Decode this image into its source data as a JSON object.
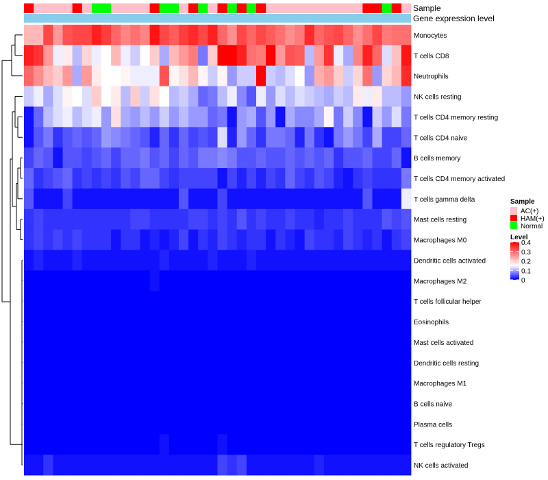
{
  "chart_data": {
    "type": "heatmap",
    "annotation_labels": {
      "sample": "Sample",
      "gene": "Gene expression level"
    },
    "rows": [
      "Monocytes",
      "T cells CD8",
      "Neutrophils",
      "NK cells resting",
      "T cells CD4 memory resting",
      "T cells CD4 naive",
      "B cells memory",
      "T cells CD4 memory activated",
      "T cells gamma delta",
      "Mast cells resting",
      "Macrophages M0",
      "Dendritic cells activated",
      "Macrophages M2",
      "T cells follicular helper",
      "Eosinophils",
      "Mast cells activated",
      "Dendritic cells resting",
      "Macrophages M1",
      "B cells naive",
      "Plasma cells",
      "T cells regulatory  Tregs",
      "NK cells activated"
    ],
    "samples": [
      "HAM(+)",
      "AC(+)",
      "AC(+)",
      "AC(+)",
      "AC(+)",
      "HAM(+)",
      "AC(+)",
      "Normal",
      "Normal",
      "AC(+)",
      "AC(+)",
      "AC(+)",
      "AC(+)",
      "HAM(+)",
      "Normal",
      "Normal",
      "AC(+)",
      "HAM(+)",
      "Normal",
      "AC(+)",
      "HAM(+)",
      "Normal",
      "HAM(+)",
      "Normal",
      "HAM(+)",
      "AC(+)",
      "AC(+)",
      "AC(+)",
      "AC(+)",
      "AC(+)",
      "AC(+)",
      "AC(+)",
      "AC(+)",
      "AC(+)",
      "AC(+)",
      "HAM(+)",
      "HAM(+)",
      "Normal",
      "HAM(+)",
      "AC(+)"
    ],
    "values": [
      [
        0.22,
        0.22,
        0.33,
        0.25,
        0.32,
        0.33,
        0.33,
        0.37,
        0.34,
        0.3,
        0.27,
        0.29,
        0.27,
        0.38,
        0.33,
        0.31,
        0.34,
        0.36,
        0.33,
        0.37,
        0.3,
        0.26,
        0.33,
        0.3,
        0.33,
        0.31,
        0.29,
        0.26,
        0.28,
        0.36,
        0.3,
        0.32,
        0.33,
        0.3,
        0.26,
        0.29,
        0.33,
        0.28,
        0.29,
        0.29
      ],
      [
        0.37,
        0.35,
        0.25,
        0.14,
        0.17,
        0.11,
        0.19,
        0.14,
        0.15,
        0.22,
        0.14,
        0.12,
        0.15,
        0.2,
        0.1,
        0.22,
        0.25,
        0.28,
        0.07,
        0.2,
        0.4,
        0.4,
        0.37,
        0.29,
        0.28,
        0.41,
        0.25,
        0.32,
        0.31,
        0.11,
        0.25,
        0.35,
        0.14,
        0.1,
        0.27,
        0.37,
        0.3,
        0.13,
        0.21,
        0.38
      ],
      [
        0.3,
        0.26,
        0.22,
        0.2,
        0.25,
        0.1,
        0.25,
        0.17,
        0.15,
        0.15,
        0.16,
        0.14,
        0.14,
        0.14,
        0.32,
        0.16,
        0.18,
        0.22,
        0.16,
        0.12,
        0.16,
        0.09,
        0.12,
        0.12,
        0.4,
        0.12,
        0.11,
        0.13,
        0.15,
        0.09,
        0.23,
        0.25,
        0.2,
        0.12,
        0.19,
        0.29,
        0.09,
        0.19,
        0.22,
        0.36
      ],
      [
        0.12,
        0.14,
        0.1,
        0.13,
        0.16,
        0.15,
        0.13,
        0.2,
        0.15,
        0.17,
        0.11,
        0.2,
        0.12,
        0.18,
        0.15,
        0.11,
        0.12,
        0.1,
        0.06,
        0.07,
        0.11,
        0.14,
        0.08,
        0.05,
        0.14,
        0.09,
        0.13,
        0.11,
        0.13,
        0.12,
        0.11,
        0.1,
        0.12,
        0.11,
        0.17,
        0.14,
        0.17,
        0.11,
        0.11,
        0.09
      ],
      [
        0.01,
        0.06,
        0.11,
        0.13,
        0.14,
        0.11,
        0.13,
        0.14,
        0.09,
        0.18,
        0.1,
        0.09,
        0.11,
        0.09,
        0.12,
        0.09,
        0.11,
        0.09,
        0.09,
        0.06,
        0.07,
        0.01,
        0.09,
        0.1,
        0.05,
        0.09,
        0.01,
        0.1,
        0.08,
        0.08,
        0.1,
        0.16,
        0.07,
        0.12,
        0.08,
        0.01,
        0.12,
        0.09,
        0.13,
        0.07
      ],
      [
        0.01,
        0.05,
        0.07,
        0.03,
        0.05,
        0.06,
        0.05,
        0.06,
        0.09,
        0.08,
        0.07,
        0.06,
        0.05,
        0.02,
        0.06,
        0.03,
        0.06,
        0.04,
        0.05,
        0.04,
        0.13,
        0.02,
        0.09,
        0.06,
        0.03,
        0.07,
        0.07,
        0.06,
        0.02,
        0.07,
        0.03,
        0.01,
        0.07,
        0.09,
        0.07,
        0.04,
        0.1,
        0.04,
        0.04,
        0.06
      ],
      [
        0.04,
        0.06,
        0.05,
        0.01,
        0.05,
        0.05,
        0.04,
        0.05,
        0.06,
        0.04,
        0.06,
        0.06,
        0.07,
        0.05,
        0.06,
        0.04,
        0.06,
        0.05,
        0.07,
        0.07,
        0.08,
        0.07,
        0.05,
        0.05,
        0.06,
        0.05,
        0.05,
        0.06,
        0.05,
        0.06,
        0.05,
        0.06,
        0.03,
        0.05,
        0.05,
        0.06,
        0.04,
        0.04,
        0.06,
        0.01
      ],
      [
        0.06,
        0.03,
        0.04,
        0.05,
        0.06,
        0.03,
        0.04,
        0.03,
        0.04,
        0.03,
        0.05,
        0.04,
        0.06,
        0.06,
        0.04,
        0.03,
        0.04,
        0.04,
        0.04,
        0.04,
        0.01,
        0.04,
        0.02,
        0.04,
        0.02,
        0.04,
        0.03,
        0.06,
        0.04,
        0.03,
        0.05,
        0.04,
        0.02,
        0.01,
        0.03,
        0.04,
        0.03,
        0.03,
        0.03,
        0.07
      ],
      [
        0.05,
        0.01,
        0.01,
        0.01,
        0.04,
        0.01,
        0.01,
        0.01,
        0.01,
        0.01,
        0.01,
        0.01,
        0.01,
        0.01,
        0.01,
        0.01,
        0.05,
        0.01,
        0.01,
        0.01,
        0.04,
        0.01,
        0.01,
        0.01,
        0.01,
        0.01,
        0.01,
        0.01,
        0.01,
        0.01,
        0.01,
        0.01,
        0.01,
        0.01,
        0.01,
        0.05,
        0.01,
        0.01,
        0.01,
        0.14
      ],
      [
        0.03,
        0.04,
        0.03,
        0.03,
        0.03,
        0.03,
        0.03,
        0.03,
        0.03,
        0.03,
        0.03,
        0.04,
        0.04,
        0.03,
        0.03,
        0.03,
        0.03,
        0.04,
        0.04,
        0.03,
        0.04,
        0.03,
        0.05,
        0.03,
        0.04,
        0.03,
        0.03,
        0.04,
        0.03,
        0.03,
        0.02,
        0.03,
        0.03,
        0.04,
        0.03,
        0.03,
        0.03,
        0.05,
        0.04,
        0.05
      ],
      [
        0.03,
        0.04,
        0.03,
        0.04,
        0.03,
        0.04,
        0.03,
        0.03,
        0.03,
        0.01,
        0.03,
        0.03,
        0.01,
        0.02,
        0.01,
        0.02,
        0.04,
        0.01,
        0.03,
        0.02,
        0.04,
        0.03,
        0.02,
        0.03,
        0.03,
        0.01,
        0.03,
        0.02,
        0.01,
        0.04,
        0.03,
        0.03,
        0.02,
        0.04,
        0.03,
        0.02,
        0.03,
        0.01,
        0.03,
        0.04
      ],
      [
        0.01,
        0.02,
        0.01,
        0.01,
        0.01,
        0.02,
        0.01,
        0.01,
        0.01,
        0.01,
        0.01,
        0.01,
        0.01,
        0.01,
        0.02,
        0.01,
        0.01,
        0.01,
        0.01,
        0.02,
        0.01,
        0.01,
        0.01,
        0.02,
        0.01,
        0.01,
        0.01,
        0.01,
        0.01,
        0.01,
        0.01,
        0.01,
        0.01,
        0.01,
        0.01,
        0.01,
        0.01,
        0.01,
        0.01,
        0.01
      ],
      [
        0.0,
        0.0,
        0.0,
        0.0,
        0.0,
        0.0,
        0.0,
        0.0,
        0.0,
        0.0,
        0.0,
        0.0,
        0.0,
        0.01,
        0.0,
        0.0,
        0.0,
        0.0,
        0.0,
        0.0,
        0.0,
        0.0,
        0.0,
        0.0,
        0.0,
        0.0,
        0.0,
        0.0,
        0.0,
        0.0,
        0.0,
        0.0,
        0.0,
        0.0,
        0.0,
        0.0,
        0.0,
        0.0,
        0.0,
        0.0
      ],
      [
        0.0,
        0.0,
        0.0,
        0.0,
        0.0,
        0.0,
        0.0,
        0.0,
        0.0,
        0.0,
        0.0,
        0.0,
        0.0,
        0.0,
        0.0,
        0.0,
        0.0,
        0.0,
        0.0,
        0.0,
        0.0,
        0.0,
        0.0,
        0.0,
        0.0,
        0.0,
        0.0,
        0.0,
        0.0,
        0.0,
        0.0,
        0.0,
        0.0,
        0.0,
        0.0,
        0.0,
        0.0,
        0.0,
        0.0,
        0.0
      ],
      [
        0.0,
        0.0,
        0.0,
        0.0,
        0.0,
        0.0,
        0.0,
        0.0,
        0.0,
        0.0,
        0.0,
        0.0,
        0.0,
        0.0,
        0.0,
        0.0,
        0.0,
        0.0,
        0.0,
        0.0,
        0.0,
        0.0,
        0.0,
        0.0,
        0.0,
        0.0,
        0.0,
        0.0,
        0.0,
        0.0,
        0.0,
        0.0,
        0.0,
        0.0,
        0.0,
        0.0,
        0.0,
        0.0,
        0.0,
        0.0
      ],
      [
        0.0,
        0.0,
        0.0,
        0.0,
        0.0,
        0.0,
        0.0,
        0.0,
        0.0,
        0.0,
        0.0,
        0.0,
        0.0,
        0.0,
        0.0,
        0.0,
        0.0,
        0.0,
        0.0,
        0.0,
        0.0,
        0.0,
        0.0,
        0.0,
        0.0,
        0.0,
        0.0,
        0.0,
        0.0,
        0.0,
        0.0,
        0.0,
        0.0,
        0.0,
        0.0,
        0.0,
        0.0,
        0.0,
        0.0,
        0.0
      ],
      [
        0.0,
        0.0,
        0.0,
        0.0,
        0.0,
        0.0,
        0.0,
        0.0,
        0.0,
        0.0,
        0.0,
        0.0,
        0.0,
        0.0,
        0.0,
        0.0,
        0.0,
        0.0,
        0.0,
        0.0,
        0.0,
        0.0,
        0.0,
        0.0,
        0.0,
        0.0,
        0.0,
        0.0,
        0.0,
        0.0,
        0.0,
        0.0,
        0.0,
        0.0,
        0.0,
        0.0,
        0.0,
        0.0,
        0.0,
        0.0
      ],
      [
        0.0,
        0.0,
        0.0,
        0.0,
        0.0,
        0.0,
        0.0,
        0.0,
        0.0,
        0.0,
        0.0,
        0.0,
        0.0,
        0.0,
        0.0,
        0.0,
        0.0,
        0.0,
        0.0,
        0.0,
        0.0,
        0.0,
        0.0,
        0.0,
        0.0,
        0.0,
        0.0,
        0.0,
        0.0,
        0.0,
        0.0,
        0.0,
        0.0,
        0.0,
        0.0,
        0.0,
        0.0,
        0.0,
        0.0,
        0.0
      ],
      [
        0.0,
        0.0,
        0.0,
        0.0,
        0.0,
        0.0,
        0.0,
        0.0,
        0.0,
        0.0,
        0.0,
        0.0,
        0.0,
        0.0,
        0.0,
        0.0,
        0.0,
        0.0,
        0.0,
        0.0,
        0.0,
        0.0,
        0.0,
        0.0,
        0.0,
        0.0,
        0.0,
        0.0,
        0.0,
        0.0,
        0.0,
        0.0,
        0.0,
        0.0,
        0.0,
        0.0,
        0.0,
        0.0,
        0.0,
        0.0
      ],
      [
        0.0,
        0.0,
        0.0,
        0.0,
        0.0,
        0.0,
        0.0,
        0.0,
        0.0,
        0.0,
        0.0,
        0.0,
        0.0,
        0.0,
        0.0,
        0.0,
        0.0,
        0.0,
        0.0,
        0.0,
        0.0,
        0.0,
        0.0,
        0.0,
        0.0,
        0.0,
        0.0,
        0.0,
        0.0,
        0.0,
        0.0,
        0.0,
        0.0,
        0.0,
        0.0,
        0.0,
        0.0,
        0.0,
        0.0,
        0.0
      ],
      [
        0.0,
        0.0,
        0.0,
        0.0,
        0.0,
        0.0,
        0.0,
        0.0,
        0.0,
        0.0,
        0.0,
        0.0,
        0.0,
        0.0,
        0.01,
        0.0,
        0.0,
        0.0,
        0.0,
        0.0,
        0.01,
        0.0,
        0.0,
        0.0,
        0.0,
        0.0,
        0.0,
        0.0,
        0.0,
        0.0,
        0.0,
        0.0,
        0.0,
        0.0,
        0.0,
        0.0,
        0.0,
        0.0,
        0.0,
        0.0
      ],
      [
        0.01,
        0.01,
        0.03,
        0.01,
        0.01,
        0.01,
        0.01,
        0.01,
        0.01,
        0.01,
        0.01,
        0.01,
        0.01,
        0.01,
        0.01,
        0.01,
        0.01,
        0.01,
        0.01,
        0.01,
        0.04,
        0.03,
        0.04,
        0.01,
        0.01,
        0.01,
        0.01,
        0.01,
        0.01,
        0.01,
        0.02,
        0.01,
        0.01,
        0.01,
        0.01,
        0.01,
        0.01,
        0.01,
        0.01,
        0.01
      ]
    ],
    "legend": {
      "sample_title": "Sample",
      "sample_entries": [
        {
          "label": "AC(+)",
          "color": "#ffc0cb"
        },
        {
          "label": "HAM(+)",
          "color": "#ff0000"
        },
        {
          "label": "Normal",
          "color": "#00ff00"
        }
      ],
      "level_title": "Level",
      "level_ticks": [
        "0.4",
        "0.3",
        "0.2",
        "0.1",
        "0"
      ],
      "level_range": [
        0,
        0.4
      ]
    },
    "gene_bar_color": "#87ceeb",
    "color_scale": {
      "low": "#0000ff",
      "mid": "#ffffff",
      "high": "#ff0000",
      "mid_value": 0.15,
      "max_value": 0.4
    }
  }
}
